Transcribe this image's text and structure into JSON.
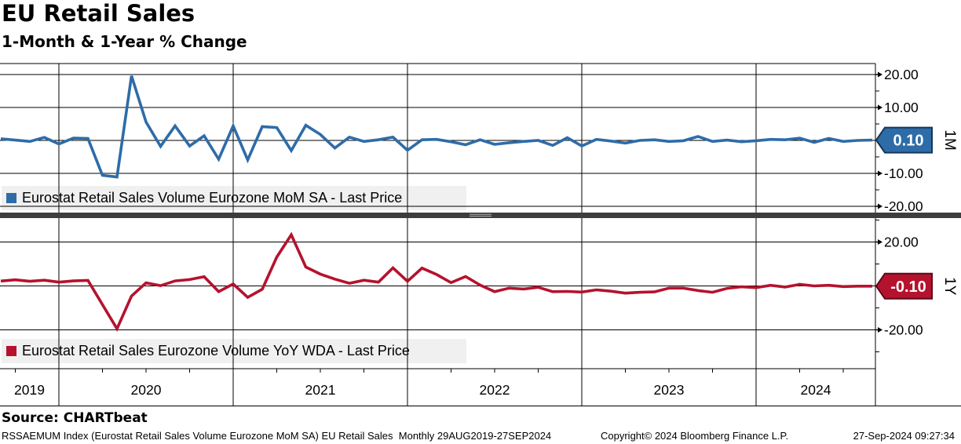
{
  "header": {
    "title": "EU Retail Sales",
    "subtitle": "1-Month & 1-Year % Change"
  },
  "chart_data": [
    {
      "type": "line",
      "panel": "top",
      "legend": "Eurostat Retail Sales Volume Eurozone MoM SA - Last Price",
      "color": "#2E6CA8",
      "box_stroke": "#14365A",
      "axis_name": "1M",
      "last_price_label": "0.10",
      "last_price_value": 0.1,
      "x_start": "2019-09",
      "x_end": "2024-09",
      "x_freq": "monthly",
      "x_year_labels": [
        "2019",
        "2020",
        "2021",
        "2022",
        "2023",
        "2024"
      ],
      "y_tick_labels": [
        {
          "value": 20,
          "label": "20.00"
        },
        {
          "value": 10,
          "label": "10.00"
        },
        {
          "value": -10,
          "label": "-10.00"
        },
        {
          "value": -20,
          "label": "-20.00"
        }
      ],
      "y_grid_values": [
        -20,
        -10,
        0,
        10,
        20
      ],
      "y_minor_ticks": [
        -15,
        -5,
        5,
        15
      ],
      "ylim": [
        -22.5,
        23.5
      ],
      "values": [
        0.5,
        0.1,
        -0.3,
        0.9,
        -1.1,
        0.7,
        0.6,
        -10.6,
        -11.1,
        19.6,
        5.6,
        -1.8,
        4.4,
        -1.7,
        1.4,
        -5.7,
        4.4,
        -5.9,
        4.2,
        3.9,
        -3.1,
        4.6,
        1.8,
        -2.3,
        1.0,
        -0.3,
        0.2,
        1.0,
        -3.0,
        0.2,
        0.3,
        -0.4,
        -1.3,
        0.2,
        -1.2,
        -0.7,
        -0.3,
        0.0,
        -1.5,
        0.8,
        -1.7,
        0.3,
        -0.2,
        -0.8,
        0.0,
        0.2,
        -0.3,
        -0.1,
        1.2,
        -0.3,
        0.1,
        -0.4,
        -0.1,
        0.3,
        0.2,
        0.7,
        -0.6,
        0.6,
        -0.3,
        0.0,
        0.1
      ]
    },
    {
      "type": "line",
      "panel": "bottom",
      "legend": "Eurostat Retail Sales Eurozone Volume YoY WDA - Last Price",
      "color": "#B5122E",
      "box_stroke": "#5C0918",
      "axis_name": "1Y",
      "last_price_label": "-0.10",
      "last_price_value": -0.1,
      "x_start": "2019-09",
      "x_end": "2024-09",
      "x_freq": "monthly",
      "x_year_labels": [
        "2019",
        "2020",
        "2021",
        "2022",
        "2023",
        "2024"
      ],
      "y_tick_labels": [
        {
          "value": 20,
          "label": "20.00"
        },
        {
          "value": -20,
          "label": "-20.00"
        }
      ],
      "y_grid_values": [
        -20,
        0,
        20
      ],
      "y_minor_ticks": [
        -30,
        -10,
        10,
        30
      ],
      "ylim": [
        -31,
        31
      ],
      "values": [
        2.2,
        2.8,
        2.1,
        2.6,
        1.7,
        2.3,
        2.5,
        -8.5,
        -19.5,
        -4.6,
        1.4,
        0.1,
        2.3,
        2.9,
        4.2,
        -2.6,
        0.9,
        -5.2,
        -1.5,
        13.1,
        23.3,
        8.6,
        5.4,
        3.1,
        1.2,
        2.6,
        1.7,
        8.2,
        2.1,
        8.1,
        5.2,
        1.5,
        4.3,
        0.4,
        -2.6,
        -1.0,
        -1.4,
        -0.6,
        -2.6,
        -2.5,
        -2.8,
        -1.8,
        -2.4,
        -3.3,
        -2.9,
        -2.7,
        -1.0,
        -1.0,
        -2.1,
        -2.9,
        -1.1,
        -0.4,
        -0.8,
        0.3,
        -0.5,
        0.7,
        0.0,
        0.3,
        -0.3,
        -0.1,
        -0.1
      ]
    }
  ],
  "footer": {
    "source": "Source: CHARTbeat",
    "description": "RSSAEMUM Index (Eurostat Retail Sales Volume Eurozone MoM SA) EU Retail Sales  Monthly 29AUG2019-27SEP2024",
    "copyright": "Copyright© 2024 Bloomberg Finance L.P.",
    "timestamp": "27-Sep-2024 09:27:34"
  }
}
